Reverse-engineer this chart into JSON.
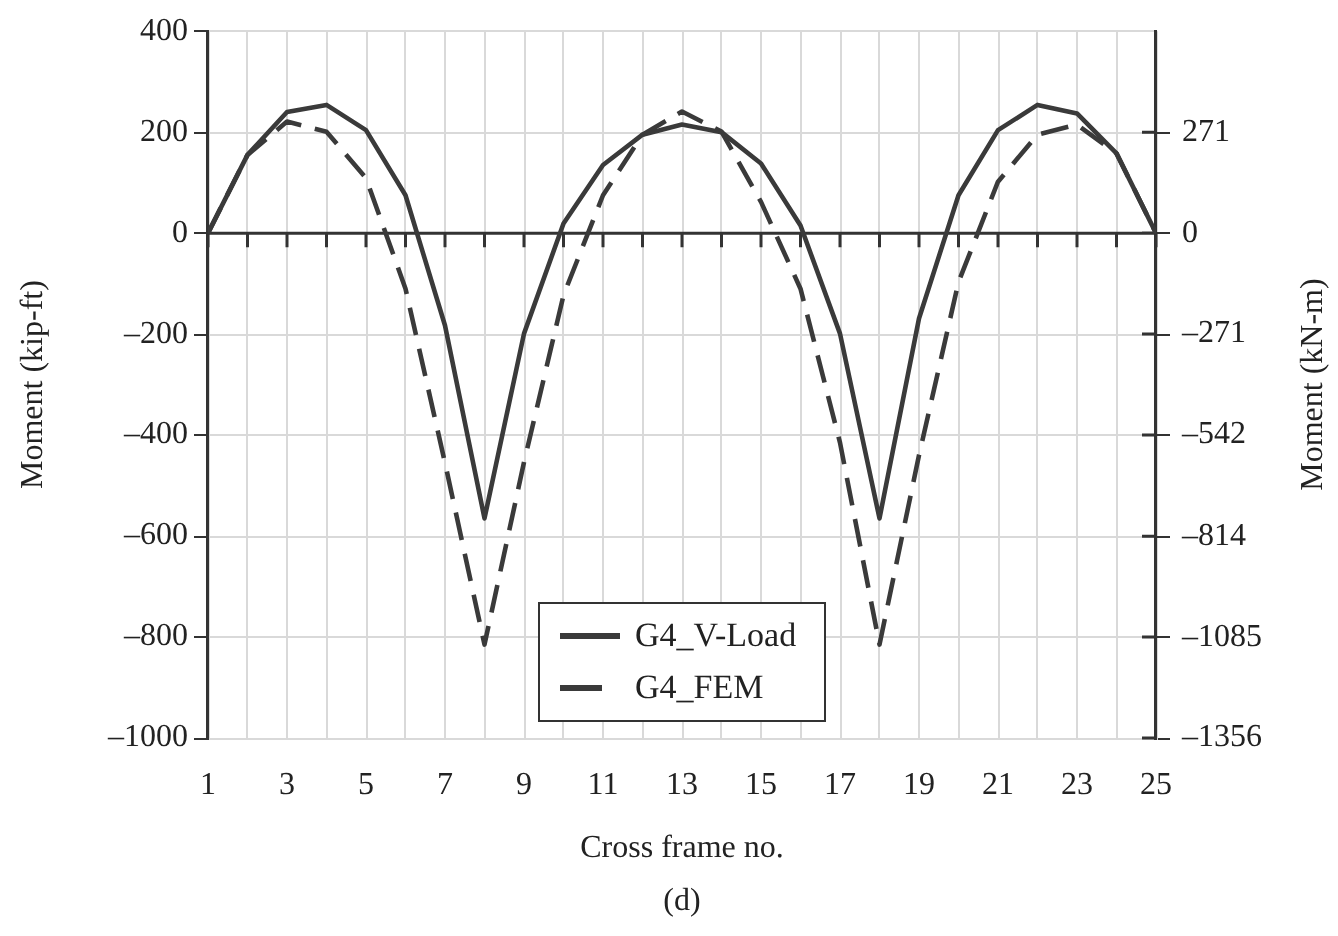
{
  "chart_data": {
    "type": "line",
    "xlabel": "Cross frame no.",
    "ylabel": "Moment (kip-ft)",
    "y2label": "Moment (kN-m)",
    "annotations": [
      "(d)"
    ],
    "x": [
      1,
      2,
      3,
      4,
      5,
      6,
      7,
      8,
      9,
      10,
      11,
      12,
      13,
      14,
      15,
      16,
      17,
      18,
      19,
      20,
      21,
      22,
      23,
      24,
      25
    ],
    "series": [
      {
        "name": "G4_V-Load",
        "color": "#3a3a3a",
        "line_style": "solid",
        "values": [
          0,
          155,
          240,
          254,
          204,
          75,
          -183,
          -565,
          -199,
          19,
          135,
          195,
          215,
          200,
          138,
          15,
          -199,
          -565,
          -169,
          75,
          204,
          254,
          237,
          158,
          0
        ]
      },
      {
        "name": "G4_FEM",
        "color": "#3a3a3a",
        "line_style": "dashed",
        "values": [
          0,
          155,
          221,
          201,
          109,
          -110,
          -455,
          -815,
          -454,
          -123,
          75,
          195,
          241,
          201,
          62,
          -110,
          -415,
          -815,
          -440,
          -97,
          102,
          195,
          215,
          158,
          0
        ]
      }
    ],
    "xlim": [
      1,
      25
    ],
    "xticks": [
      1,
      {
        "value": 2,
        "label": null
      },
      3,
      {
        "value": 4,
        "label": null
      },
      5,
      {
        "value": 6,
        "label": null
      },
      7,
      {
        "value": 8,
        "label": null
      },
      9,
      {
        "value": 10,
        "label": null
      },
      11,
      {
        "value": 12,
        "label": null
      },
      13,
      {
        "value": 14,
        "label": null
      },
      15,
      {
        "value": 16,
        "label": null
      },
      17,
      {
        "value": 18,
        "label": null
      },
      19,
      {
        "value": 20,
        "label": null
      },
      21,
      {
        "value": 22,
        "label": null
      },
      23,
      {
        "value": 24,
        "label": null
      },
      25
    ],
    "ylim": [
      -1000,
      400
    ],
    "yticks": [
      {
        "value": -1000,
        "label": "–1000"
      },
      {
        "value": -800,
        "label": "–800"
      },
      {
        "value": -600,
        "label": "–600"
      },
      {
        "value": -400,
        "label": "–400"
      },
      {
        "value": -200,
        "label": "–200"
      },
      0,
      200,
      400
    ],
    "y2lim": [
      -1356,
      542.3
    ],
    "y2ticks": [
      {
        "value": -1356,
        "label": "–1356"
      },
      {
        "value": -1085,
        "label": "–1085"
      },
      {
        "value": -814,
        "label": "–814"
      },
      {
        "value": -542,
        "label": "–542"
      },
      {
        "value": -271,
        "label": "–271"
      },
      0,
      271
    ],
    "grid": true,
    "legend": "bottom",
    "marker": "none"
  }
}
